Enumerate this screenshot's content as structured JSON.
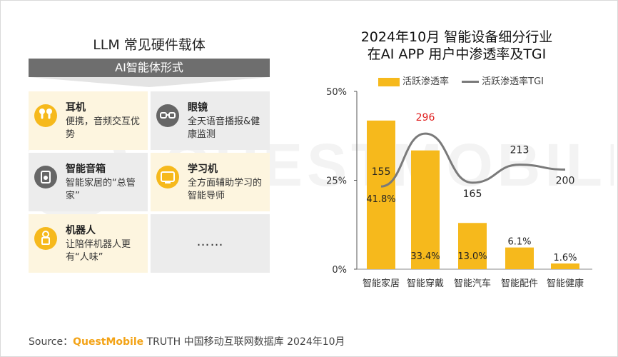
{
  "watermark": {
    "text": "QUESTMOBILE"
  },
  "left_panel": {
    "title": "LLM 常见硬件载体",
    "banner": "AI智能体形式",
    "cells": [
      {
        "title": "耳机",
        "desc": "便携，音频交互优势",
        "icon": "earphones-icon",
        "bg": "yellow"
      },
      {
        "title": "眼镜",
        "desc": "全天语音播报&健康监测",
        "icon": "glasses-icon",
        "bg": "gray"
      },
      {
        "title": "智能音箱",
        "desc": "智能家居的“总管家”",
        "icon": "speaker-icon",
        "bg": "gray"
      },
      {
        "title": "学习机",
        "desc": "全方面辅助学习的智能导师",
        "icon": "tablet-icon",
        "bg": "yellow"
      },
      {
        "title": "机器人",
        "desc": "让陪伴机器人更有“人味”",
        "icon": "robot-icon",
        "bg": "yellow"
      },
      {
        "title": "",
        "desc": "……",
        "icon": "",
        "bg": "gray"
      }
    ]
  },
  "chart_data": {
    "type": "bar",
    "title": "2024年10月 智能设备细分行业在AI APP 用户中渗透率及TGI",
    "title_lines": [
      "2024年10月 智能设备细分行业",
      "在AI APP 用户中渗透率及TGI"
    ],
    "categories": [
      "智能家居",
      "智能穿戴",
      "智能汽车",
      "智能配件",
      "智能健康"
    ],
    "series": [
      {
        "name": "活跃渗透率",
        "type": "bar",
        "values": [
          41.8,
          33.4,
          13.0,
          6.1,
          1.6
        ],
        "labels": [
          "41.8%",
          "33.4%",
          "13.0%",
          "6.1%",
          "1.6%"
        ],
        "color": "#f6b91c"
      },
      {
        "name": "活跃渗透率TGI",
        "type": "line",
        "values": [
          155,
          296,
          165,
          213,
          200
        ],
        "labels": [
          "155",
          "296",
          "165",
          "213",
          "200"
        ],
        "color": "#7a7a7a",
        "highlight_color": "#e02020",
        "highlight_index": 1
      }
    ],
    "y_ticks": [
      "50%",
      "25%",
      "0%"
    ],
    "ylim": [
      0,
      50
    ],
    "tgi_range": [
      100,
      300
    ],
    "legend_position": "top",
    "grid": false
  },
  "source": {
    "prefix": "Source：",
    "brand": "QuestMobile",
    "rest": " TRUTH 中国移动互联网数据库 2024年10月"
  }
}
